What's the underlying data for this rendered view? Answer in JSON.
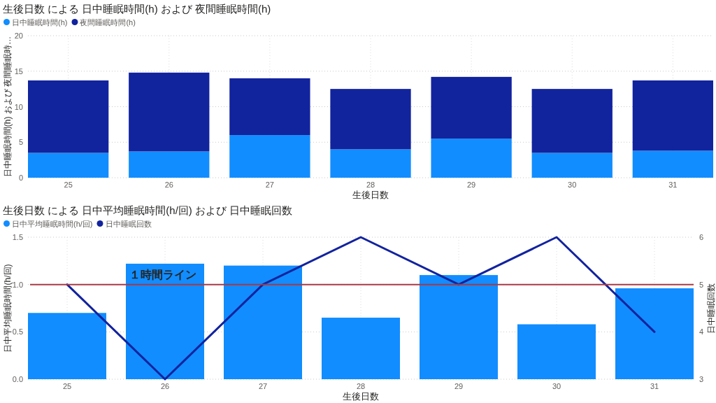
{
  "chart_data": [
    {
      "type": "bar",
      "title": "生後日数 による 日中睡眠時間(h) および 夜間睡眠時間(h)",
      "xlabel": "生後日数",
      "ylabel": "日中睡眠時間(h) および 夜間睡眠時…",
      "categories": [
        "25",
        "26",
        "27",
        "28",
        "29",
        "30",
        "31"
      ],
      "series": [
        {
          "name": "日中睡眠時間(h)",
          "color": "#118dff",
          "values": [
            3.5,
            3.7,
            6.0,
            4.0,
            5.5,
            3.5,
            3.8
          ]
        },
        {
          "name": "夜間睡眠時間(h)",
          "color": "#12239e",
          "values": [
            10.2,
            11.1,
            8.0,
            8.5,
            8.7,
            9.0,
            9.9
          ]
        }
      ],
      "stacked": true,
      "ylim": [
        0,
        20
      ],
      "yticks": [
        0,
        5,
        10,
        15,
        20
      ],
      "grid": true,
      "legend": "top left"
    },
    {
      "type": "bar",
      "title": "生後日数 による 日中平均睡眠時間(h/回) および 日中睡眠回数",
      "xlabel": "生後日数",
      "ylabel": "日中平均睡眠時間(h/回)",
      "y2label": "日中睡眠回数",
      "categories": [
        "25",
        "26",
        "27",
        "28",
        "29",
        "30",
        "31"
      ],
      "series": [
        {
          "name": "日中平均睡眠時間(h/回)",
          "color": "#118dff",
          "values": [
            0.7,
            1.22,
            1.2,
            0.65,
            1.1,
            0.58,
            0.96
          ]
        },
        {
          "name": "日中睡眠回数",
          "type": "line",
          "axis": "y2",
          "color": "#12239e",
          "line_style": "solid",
          "values": [
            5,
            3,
            5,
            6,
            5,
            6,
            4
          ]
        }
      ],
      "ylim": [
        0,
        1.5
      ],
      "yticks": [
        {
          "value": 0,
          "label": "0.0"
        },
        {
          "value": 0.5,
          "label": "0.5"
        },
        {
          "value": 1,
          "label": "1.0"
        },
        {
          "value": 1.5,
          "label": "1.5"
        }
      ],
      "y2lim": [
        3,
        6
      ],
      "y2ticks": [
        3,
        4,
        5,
        6
      ],
      "ref_lines": [
        {
          "axis": "y",
          "value": 1,
          "label": "１時間ライン",
          "color": "#a83a45"
        }
      ],
      "grid": true,
      "legend": "top left"
    }
  ]
}
